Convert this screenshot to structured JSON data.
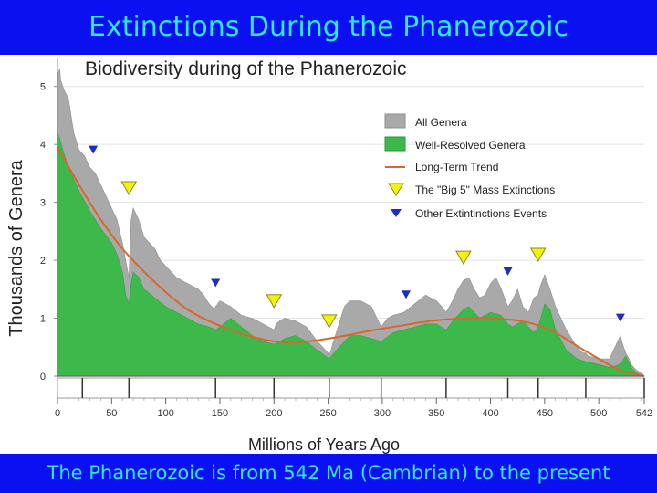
{
  "page": {
    "title": "Extinctions During the Phanerozoic",
    "footer": "The Phanerozoic is from 542 Ma (Cambrian) to the present"
  },
  "colors": {
    "banner_bg": "#0b10f0",
    "banner_text": "#2ee8f2",
    "all_genera": "#a9a9a9",
    "well_resolved": "#3db84a",
    "trend": "#d9662e",
    "big5": "#f2f20f",
    "other": "#1c2fc0"
  },
  "chart_data": {
    "type": "area",
    "title": "Biodiversity during of the Phanerozoic",
    "xlabel": "Millions of Years Ago",
    "ylabel": "Thousands of Genera",
    "xlim": [
      0,
      542
    ],
    "ylim": [
      0,
      5.5
    ],
    "x_ticks": [
      "0",
      "50",
      "100",
      "150",
      "200",
      "250",
      "300",
      "350",
      "400",
      "450",
      "500",
      "542"
    ],
    "x_tick_values": [
      0,
      50,
      100,
      150,
      200,
      250,
      300,
      350,
      400,
      450,
      500,
      542
    ],
    "y_ticks": [
      "0",
      "1",
      "2",
      "3",
      "4",
      "5"
    ],
    "y_tick_values": [
      0,
      1,
      2,
      3,
      4,
      5
    ],
    "period_boundaries": [
      23,
      66,
      146,
      200,
      251,
      299,
      359,
      416,
      444,
      488,
      542
    ],
    "legend": {
      "all_genera": "All Genera",
      "well_resolved": "Well-Resolved Genera",
      "trend": "Long-Term Trend",
      "big5": "The \"Big 5\" Mass Extinctions",
      "other": "Other Extintinctions Events"
    },
    "series": [
      {
        "name": "All Genera",
        "x": [
          0,
          2,
          3,
          5,
          7,
          10,
          15,
          20,
          25,
          30,
          35,
          40,
          45,
          50,
          55,
          60,
          63,
          65,
          66,
          68,
          70,
          75,
          80,
          85,
          90,
          95,
          100,
          110,
          120,
          130,
          135,
          140,
          145,
          146,
          150,
          160,
          170,
          180,
          190,
          195,
          200,
          202,
          205,
          210,
          220,
          230,
          240,
          245,
          250,
          251,
          255,
          260,
          265,
          270,
          280,
          290,
          295,
          299,
          305,
          310,
          320,
          330,
          340,
          350,
          355,
          359,
          365,
          370,
          375,
          380,
          385,
          390,
          395,
          400,
          405,
          410,
          416,
          420,
          425,
          430,
          435,
          440,
          444,
          446,
          450,
          455,
          460,
          470,
          480,
          485,
          488,
          490,
          500,
          510,
          520,
          522,
          525,
          528,
          530,
          535,
          540,
          542
        ],
        "y": [
          5.2,
          5.3,
          5.1,
          5.0,
          4.9,
          4.8,
          4.2,
          3.9,
          3.8,
          3.6,
          3.5,
          3.3,
          3.1,
          2.9,
          2.7,
          2.3,
          2.0,
          1.8,
          1.7,
          2.7,
          2.9,
          2.7,
          2.4,
          2.3,
          2.2,
          2.0,
          1.9,
          1.7,
          1.6,
          1.5,
          1.4,
          1.25,
          1.15,
          1.2,
          1.3,
          1.2,
          1.05,
          1.0,
          0.9,
          0.85,
          0.8,
          0.9,
          0.95,
          1.0,
          0.95,
          0.85,
          0.6,
          0.5,
          0.4,
          0.35,
          0.6,
          0.9,
          1.2,
          1.3,
          1.3,
          1.2,
          1.0,
          0.85,
          1.0,
          1.05,
          1.1,
          1.25,
          1.4,
          1.3,
          1.2,
          1.1,
          1.3,
          1.5,
          1.65,
          1.7,
          1.5,
          1.35,
          1.4,
          1.6,
          1.7,
          1.5,
          1.2,
          1.3,
          1.5,
          1.2,
          1.1,
          1.35,
          1.4,
          1.55,
          1.75,
          1.5,
          1.2,
          0.8,
          0.5,
          0.4,
          0.4,
          0.35,
          0.3,
          0.3,
          0.7,
          0.55,
          0.4,
          0.3,
          0.2,
          0.1,
          0.05,
          0
        ]
      },
      {
        "name": "Well-Resolved Genera",
        "x": [
          0,
          2,
          5,
          10,
          20,
          30,
          40,
          50,
          55,
          60,
          63,
          66,
          68,
          70,
          75,
          80,
          90,
          100,
          110,
          120,
          130,
          140,
          146,
          150,
          160,
          170,
          180,
          190,
          200,
          205,
          210,
          220,
          230,
          240,
          251,
          260,
          270,
          280,
          290,
          299,
          310,
          320,
          330,
          340,
          350,
          359,
          365,
          370,
          375,
          380,
          385,
          390,
          400,
          410,
          416,
          420,
          430,
          440,
          444,
          448,
          450,
          455,
          460,
          470,
          480,
          488,
          500,
          510,
          520,
          525,
          530,
          535,
          540,
          542
        ],
        "y": [
          4.2,
          4.1,
          3.9,
          3.6,
          3.2,
          2.85,
          2.55,
          2.3,
          2.1,
          1.8,
          1.4,
          1.25,
          1.6,
          1.8,
          1.7,
          1.5,
          1.35,
          1.2,
          1.1,
          1.0,
          0.9,
          0.85,
          0.8,
          0.85,
          1.0,
          0.85,
          0.7,
          0.6,
          0.55,
          0.6,
          0.65,
          0.7,
          0.6,
          0.45,
          0.3,
          0.5,
          0.7,
          0.7,
          0.65,
          0.6,
          0.75,
          0.8,
          0.85,
          0.9,
          0.9,
          0.8,
          0.95,
          1.05,
          1.15,
          1.2,
          1.1,
          1.0,
          1.1,
          1.05,
          0.9,
          0.85,
          0.95,
          0.75,
          0.85,
          1.1,
          1.25,
          1.15,
          0.8,
          0.45,
          0.3,
          0.25,
          0.2,
          0.15,
          0.2,
          0.35,
          0.15,
          0.05,
          0,
          0
        ]
      },
      {
        "name": "Long-Term Trend",
        "x": [
          0,
          20,
          40,
          60,
          80,
          100,
          120,
          140,
          160,
          180,
          200,
          220,
          240,
          260,
          280,
          300,
          320,
          340,
          360,
          380,
          400,
          420,
          440,
          460,
          480,
          500,
          520,
          542
        ],
        "y": [
          3.95,
          3.3,
          2.7,
          2.2,
          1.8,
          1.45,
          1.15,
          0.95,
          0.8,
          0.68,
          0.6,
          0.58,
          0.62,
          0.68,
          0.75,
          0.82,
          0.88,
          0.94,
          0.98,
          1.0,
          1.0,
          0.97,
          0.9,
          0.75,
          0.52,
          0.3,
          0.1,
          0
        ]
      }
    ],
    "big5_extinctions": [
      66,
      200,
      251,
      375,
      444
    ],
    "other_extinctions": [
      33,
      146,
      322,
      416,
      520
    ]
  }
}
